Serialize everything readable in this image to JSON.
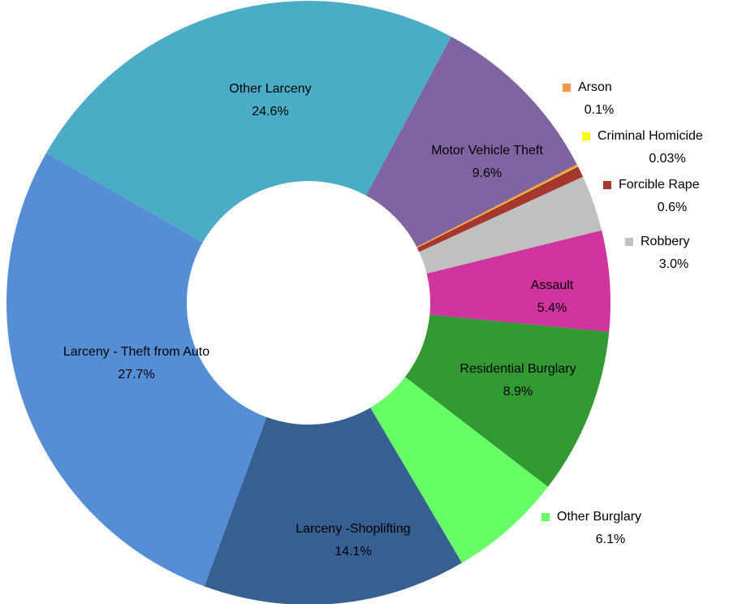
{
  "chart_data": {
    "type": "donut",
    "categories": [
      "Motor Vehicle Theft",
      "Arson",
      "Criminal Homicide",
      "Forcible Rape",
      "Robbery",
      "Assault",
      "Residential Burglary",
      "Other Burglary",
      "Larceny -Shoplifting",
      "Larceny - Theft from Auto",
      "Other Larceny"
    ],
    "values": [
      9.6,
      0.1,
      0.03,
      0.6,
      3.0,
      5.4,
      8.9,
      6.1,
      14.1,
      27.7,
      24.6
    ],
    "value_labels": [
      "9.6%",
      "0.1%",
      "0.03%",
      "0.6%",
      "3.0%",
      "5.4%",
      "8.9%",
      "6.1%",
      "14.1%",
      "27.7%",
      "24.6%"
    ],
    "colors": [
      "#8064a2",
      "#f79646",
      "#ffff00",
      "#a5372e",
      "#c0c0c0",
      "#d0359f",
      "#339933",
      "#66ff66",
      "#375f91",
      "#558ed5",
      "#4bacc6"
    ]
  }
}
